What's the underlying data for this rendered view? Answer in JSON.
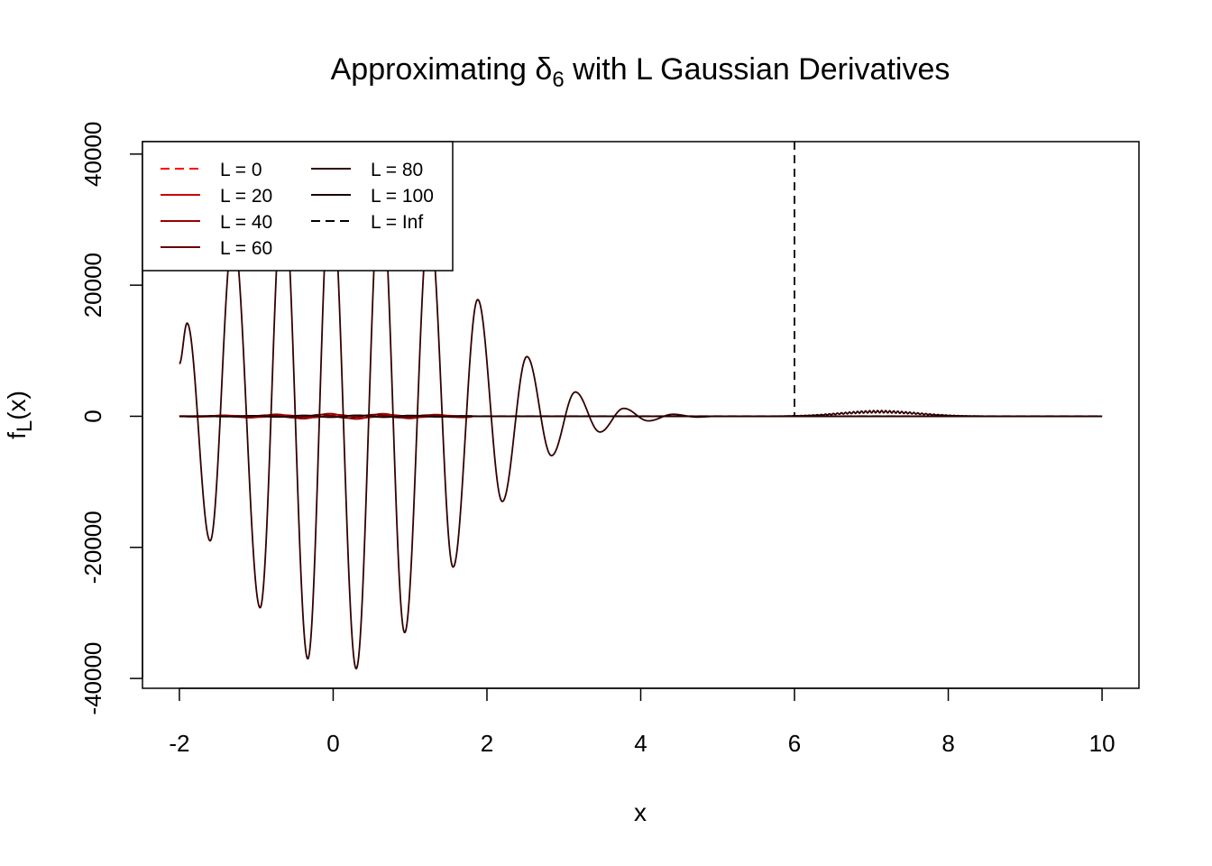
{
  "chart_data": {
    "type": "line",
    "title": {
      "prefix": "Approximating ",
      "symbol": "δ",
      "subscript": "6",
      "suffix": " with L Gaussian Derivatives"
    },
    "xlabel": "x",
    "ylabel": {
      "main": "f",
      "sub": "L",
      "rest": "(x)"
    },
    "xlim": [
      -2.48,
      10.48
    ],
    "ylim": [
      -41500,
      41900
    ],
    "x_ticks": [
      -2,
      0,
      2,
      4,
      6,
      8,
      10
    ],
    "x_tick_labels": [
      "-2",
      "0",
      "2",
      "4",
      "6",
      "8",
      "10"
    ],
    "y_ticks": [
      -40000,
      -20000,
      0,
      20000,
      40000
    ],
    "y_tick_labels": [
      "-40000",
      "-20000",
      "0",
      "20000",
      "40000"
    ],
    "grid": false,
    "legend_position": "top-left",
    "vline": {
      "x": 6,
      "style": "dashed",
      "color": "#000000"
    },
    "series": [
      {
        "name": "L = 0",
        "color": "#ff0000",
        "dash": "dashed",
        "scale": 1
      },
      {
        "name": "L = 20",
        "color": "#cc0000",
        "dash": "solid",
        "scale": 220
      },
      {
        "name": "L = 40",
        "color": "#990000",
        "dash": "solid",
        "scale": 420
      },
      {
        "name": "L = 60",
        "color": "#660000",
        "dash": "solid",
        "scale": 260
      },
      {
        "name": "L = 80",
        "color": "#330000",
        "dash": "solid",
        "scale": 38000
      },
      {
        "name": "L = 100",
        "color": "#1a0000",
        "dash": "solid",
        "scale": 150
      },
      {
        "name": "L = Inf",
        "color": "#000000",
        "dash": "dashed",
        "scale": 0
      }
    ],
    "main_oscillation": {
      "x": [
        -2,
        -1.9,
        -1.6,
        -1.3,
        -0.95,
        -0.65,
        -0.33,
        -0.03,
        0.3,
        0.62,
        0.93,
        1.25,
        1.56,
        1.88,
        2.2,
        2.52,
        2.84,
        3.15,
        3.47,
        3.78,
        4.1,
        4.42,
        4.73,
        5.0
      ],
      "y": [
        8000,
        14200,
        -19000,
        28000,
        -29200,
        35000,
        -37000,
        36000,
        -38500,
        36000,
        -33000,
        30000,
        -23000,
        17800,
        -13000,
        9100,
        -6000,
        3700,
        -2400,
        1200,
        -700,
        300,
        -120,
        0
      ]
    }
  }
}
